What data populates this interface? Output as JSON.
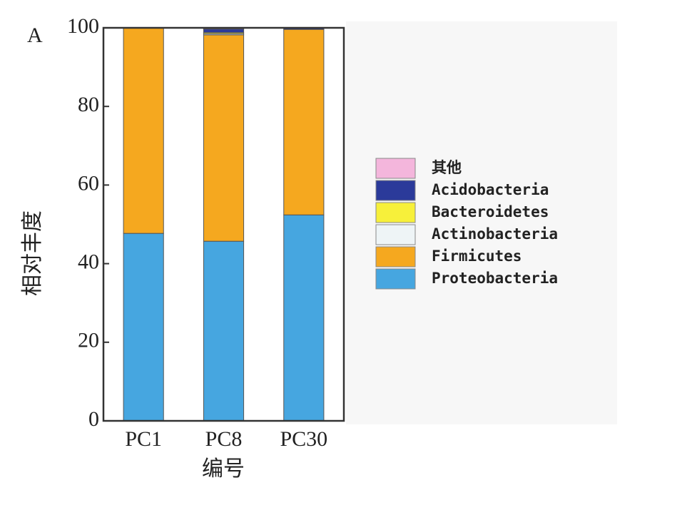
{
  "chart_data": {
    "type": "stacked_bar",
    "panel_label": "A",
    "ylabel": "相对丰度",
    "xlabel": "编号",
    "categories": [
      "PC1",
      "PC8",
      "PC30"
    ],
    "series": [
      {
        "name": "Proteobacteria",
        "color": "#46a6e0",
        "values": [
          47.7,
          45.7,
          52.4
        ]
      },
      {
        "name": "Firmicutes",
        "color": "#f5a81f",
        "values": [
          52.3,
          52.5,
          47.2
        ]
      },
      {
        "name": "Actinobacteria",
        "color": "#eef4f6",
        "values": [
          0,
          0.3,
          0
        ]
      },
      {
        "name": "Bacteroidetes",
        "color": "#f7f03a",
        "values": [
          0,
          0.3,
          0
        ]
      },
      {
        "name": "Acidobacteria",
        "color": "#2b3a9a",
        "values": [
          0,
          0.9,
          0.3
        ]
      },
      {
        "name": "其他",
        "color": "#f4b6dc",
        "values": [
          0,
          0.3,
          0.1
        ]
      }
    ],
    "ylim": [
      0,
      100
    ],
    "yticks": [
      0,
      20,
      40,
      60,
      80,
      100
    ],
    "legend": "right"
  }
}
